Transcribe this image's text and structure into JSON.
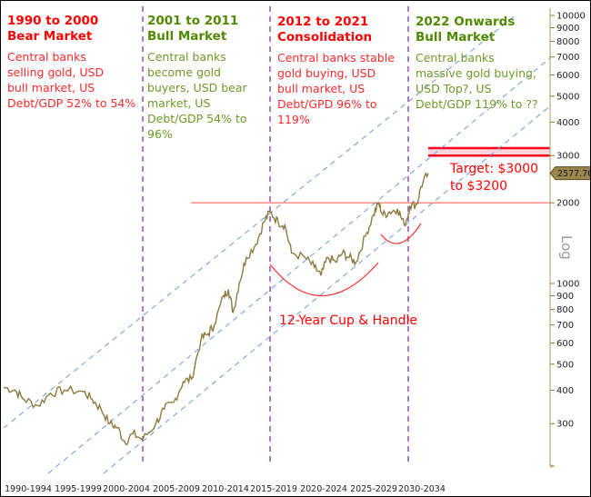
{
  "chart_data": {
    "type": "line",
    "y_scale": "log",
    "y_axis_label": "Log",
    "ylim": [
      200,
      10000
    ],
    "y_ticks": [
      300,
      400,
      500,
      600,
      700,
      800,
      900,
      1000,
      2000,
      3000,
      4000,
      5000,
      6000,
      7000,
      8000,
      9000,
      10000
    ],
    "x_tick_labels": [
      "1990-1994",
      "1995-1999",
      "2000-2004",
      "2005-2009",
      "2010-2014",
      "2015-2019",
      "2020-2024",
      "2025-2029",
      "2030-2034"
    ],
    "last_price_label": "2577.70",
    "series": [
      {
        "color": "#8b7b3e",
        "points": [
          [
            1990.0,
            410
          ],
          [
            1990.9,
            400
          ],
          [
            1991.6,
            370
          ],
          [
            1992.7,
            350
          ],
          [
            1993.7,
            390
          ],
          [
            1994.8,
            400
          ],
          [
            1996.3,
            395
          ],
          [
            1997.0,
            370
          ],
          [
            1997.7,
            340
          ],
          [
            1998.4,
            300
          ],
          [
            1999.0,
            290
          ],
          [
            1999.6,
            255
          ],
          [
            2000.2,
            275
          ],
          [
            2001.0,
            262
          ],
          [
            2002.1,
            300
          ],
          [
            2002.8,
            340
          ],
          [
            2003.6,
            360
          ],
          [
            2004.4,
            430
          ],
          [
            2005.1,
            440
          ],
          [
            2005.9,
            620
          ],
          [
            2006.5,
            650
          ],
          [
            2007.0,
            700
          ],
          [
            2007.8,
            900
          ],
          [
            2008.2,
            950
          ],
          [
            2008.6,
            780
          ],
          [
            2009.1,
            1000
          ],
          [
            2009.7,
            1250
          ],
          [
            2010.5,
            1400
          ],
          [
            2011.2,
            1700
          ],
          [
            2011.7,
            1850
          ],
          [
            2012.3,
            1700
          ],
          [
            2012.8,
            1650
          ],
          [
            2013.3,
            1300
          ],
          [
            2014.3,
            1250
          ],
          [
            2015.0,
            1150
          ],
          [
            2015.5,
            1070
          ],
          [
            2016.0,
            1250
          ],
          [
            2016.6,
            1200
          ],
          [
            2017.1,
            1300
          ],
          [
            2017.6,
            1250
          ],
          [
            2018.1,
            1200
          ],
          [
            2018.8,
            1500
          ],
          [
            2019.4,
            1800
          ],
          [
            2019.8,
            2000
          ],
          [
            2020.1,
            1800
          ],
          [
            2020.6,
            1850
          ],
          [
            2021.2,
            1900
          ],
          [
            2021.7,
            1650
          ],
          [
            2022.2,
            1950
          ],
          [
            2023.2,
            1980
          ],
          [
            2023.7,
            2300
          ],
          [
            2024.7,
            2578
          ]
        ]
      }
    ],
    "vertical_markers": [
      2001,
      2011.7,
      2022
    ],
    "horizontal_levels": [
      {
        "value": 2000,
        "color": "#ff6060"
      }
    ],
    "target_band": {
      "low": 3000,
      "high": 3200,
      "color": "#ff0020"
    },
    "channel_line_color": "#6b9bd1",
    "marker_line_color": "#9b59b6"
  },
  "periods": [
    {
      "title": "1990 to 2000",
      "subtitle": "Bear Market",
      "lines": [
        "Central banks",
        "selling gold, USD",
        "bull market, US",
        "Debt/GDP 52% to 54%"
      ]
    },
    {
      "title": "2001 to 2011",
      "subtitle": "Bull Market",
      "lines": [
        "Central banks",
        "become gold",
        "buyers, USD bear",
        "market, US",
        "Debt/GDP 54% to",
        "96%"
      ]
    },
    {
      "title": "2012 to 2021",
      "subtitle": "Consolidation",
      "lines": [
        "Central banks stable",
        "gold buying, USD",
        "bull market, US",
        "Debt/GPD 96% to",
        "119%"
      ]
    },
    {
      "title": "2022 Onwards",
      "subtitle": "Bull Market",
      "lines": [
        "Central banks",
        "massive gold buying,",
        "USD Top?, US",
        "Debt/GDP 119% to ??"
      ]
    }
  ],
  "annotations": {
    "cup": "12-Year Cup & Handle",
    "target_1": "Target: $3000",
    "target_2": "to $3200"
  }
}
